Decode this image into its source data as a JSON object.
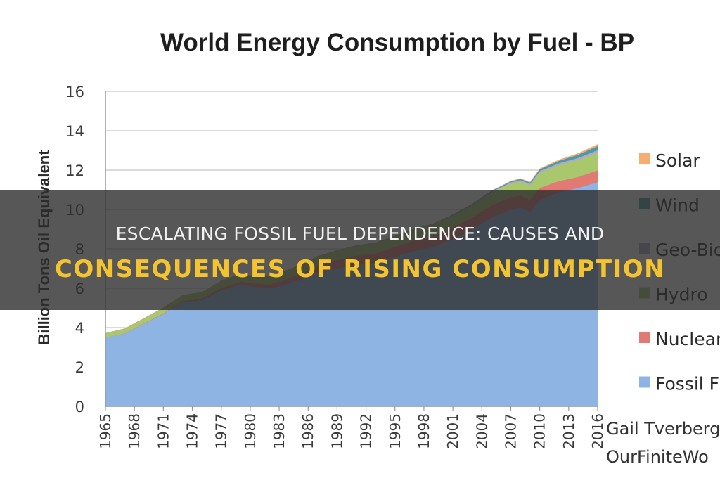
{
  "chart_data": {
    "type": "area",
    "stacked": true,
    "title": "World Energy Consumption by Fuel - BP",
    "ylabel": "Billion Tons Oil Equivalent",
    "ylim": [
      0,
      16
    ],
    "xlim": [
      1965,
      2016
    ],
    "yticks": [
      0,
      2,
      4,
      6,
      8,
      10,
      12,
      14,
      16
    ],
    "xticks": [
      "1965",
      "1968",
      "1971",
      "1974",
      "1977",
      "1980",
      "1983",
      "1986",
      "1989",
      "1992",
      "1995",
      "1998",
      "2001",
      "2004",
      "2007",
      "2010",
      "2013",
      "2016"
    ],
    "grid": true,
    "legend_position": "right",
    "x": [
      1965,
      1967,
      1969,
      1971,
      1973,
      1975,
      1977,
      1979,
      1980,
      1982,
      1983,
      1985,
      1987,
      1989,
      1991,
      1993,
      1995,
      1997,
      1999,
      2001,
      2003,
      2005,
      2007,
      2008,
      2009,
      2010,
      2012,
      2014,
      2016
    ],
    "series": [
      {
        "name": "Fossil F",
        "color": "#8db4e2",
        "values": [
          3.5,
          3.7,
          4.2,
          4.7,
          5.3,
          5.4,
          5.9,
          6.2,
          6.1,
          6.0,
          6.1,
          6.4,
          6.8,
          7.0,
          7.2,
          7.3,
          7.6,
          7.9,
          8.1,
          8.5,
          9.0,
          9.6,
          10.0,
          10.1,
          9.9,
          10.5,
          10.9,
          11.1,
          11.4
        ]
      },
      {
        "name": "Nuclear",
        "color": "#e07a73",
        "values": [
          0.0,
          0.01,
          0.02,
          0.03,
          0.05,
          0.08,
          0.12,
          0.15,
          0.16,
          0.2,
          0.23,
          0.3,
          0.36,
          0.43,
          0.46,
          0.48,
          0.5,
          0.55,
          0.57,
          0.6,
          0.6,
          0.62,
          0.62,
          0.62,
          0.6,
          0.6,
          0.55,
          0.56,
          0.6
        ]
      },
      {
        "name": "Hydro",
        "color": "#a9c86e",
        "values": [
          0.21,
          0.23,
          0.25,
          0.27,
          0.29,
          0.31,
          0.33,
          0.36,
          0.37,
          0.39,
          0.4,
          0.42,
          0.44,
          0.46,
          0.48,
          0.5,
          0.52,
          0.54,
          0.56,
          0.58,
          0.6,
          0.64,
          0.7,
          0.72,
          0.74,
          0.78,
          0.82,
          0.86,
          0.9
        ]
      },
      {
        "name": "Geo-Bio",
        "color": "#b3a8cc",
        "values": [
          0.0,
          0.0,
          0.0,
          0.0,
          0.0,
          0.0,
          0.01,
          0.01,
          0.01,
          0.01,
          0.02,
          0.02,
          0.02,
          0.03,
          0.03,
          0.03,
          0.03,
          0.03,
          0.04,
          0.04,
          0.04,
          0.05,
          0.06,
          0.06,
          0.07,
          0.08,
          0.09,
          0.11,
          0.12
        ]
      },
      {
        "name": "Wind",
        "color": "#4a9aaa",
        "values": [
          0.0,
          0.0,
          0.0,
          0.0,
          0.0,
          0.0,
          0.0,
          0.0,
          0.0,
          0.0,
          0.0,
          0.0,
          0.0,
          0.0,
          0.0,
          0.0,
          0.0,
          0.01,
          0.01,
          0.02,
          0.03,
          0.04,
          0.05,
          0.06,
          0.07,
          0.09,
          0.12,
          0.16,
          0.21
        ]
      },
      {
        "name": "Solar",
        "color": "#f6ad6f",
        "values": [
          0.0,
          0.0,
          0.0,
          0.0,
          0.0,
          0.0,
          0.0,
          0.0,
          0.0,
          0.0,
          0.0,
          0.0,
          0.0,
          0.0,
          0.0,
          0.0,
          0.0,
          0.0,
          0.0,
          0.0,
          0.0,
          0.0,
          0.01,
          0.01,
          0.01,
          0.02,
          0.04,
          0.06,
          0.08
        ]
      }
    ],
    "legend_order": [
      "Solar",
      "Wind",
      "Geo-Bio",
      "Hydro",
      "Nuclear",
      "Fossil F"
    ],
    "credit": [
      "Gail Tverberg",
      "OurFiniteWo"
    ]
  },
  "banner": {
    "line1": "ESCALATING FOSSIL FUEL DEPENDENCE: CAUSES AND",
    "line2": "CONSEQUENCES OF RISING CONSUMPTION"
  }
}
